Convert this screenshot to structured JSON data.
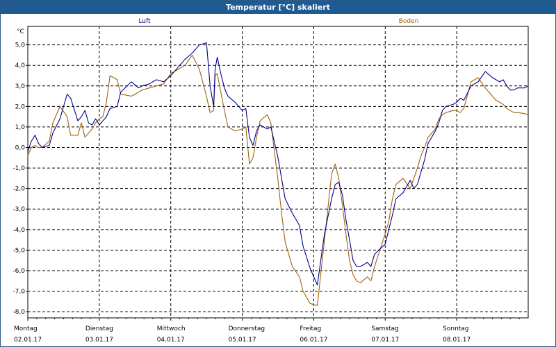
{
  "window": {
    "title": "Temperatur [°C] skaliert"
  },
  "chart_data": {
    "type": "line",
    "title": "Temperatur [°C] skaliert",
    "ylabel": "°C",
    "xlabel": "",
    "ylim": [
      -8.3,
      5.9
    ],
    "xlim": [
      0,
      7
    ],
    "y_ticks": [
      5,
      4,
      3,
      2,
      1,
      0,
      -1,
      -2,
      -3,
      -4,
      -5,
      -6,
      -7,
      -8
    ],
    "y_tick_labels": [
      "5,0",
      "4,0",
      "3,0",
      "2,0",
      "1,0",
      "0,0",
      "-1,0",
      "-2,0",
      "-3,0",
      "-4,0",
      "-5,0",
      "-6,0",
      "-7,0",
      "-8,0"
    ],
    "grid": true,
    "days": [
      {
        "name": "Montag",
        "date": "02.01.17"
      },
      {
        "name": "Dienstag",
        "date": "03.01.17"
      },
      {
        "name": "Mittwoch",
        "date": "04.01.17"
      },
      {
        "name": "Donnerstag",
        "date": "05.01.17"
      },
      {
        "name": "Freitag",
        "date": "06.01.17"
      },
      {
        "name": "Samstag",
        "date": "07.01.17"
      },
      {
        "name": "Sonntag",
        "date": "08.01.17"
      }
    ],
    "series": [
      {
        "name": "Luft",
        "color": "#00008b",
        "x": [
          0,
          0.05,
          0.1,
          0.15,
          0.2,
          0.3,
          0.35,
          0.45,
          0.55,
          0.6,
          0.7,
          0.75,
          0.8,
          0.85,
          0.9,
          0.95,
          1.0,
          1.05,
          1.1,
          1.15,
          1.25,
          1.3,
          1.45,
          1.55,
          1.6,
          1.7,
          1.8,
          1.9,
          2.0,
          2.1,
          2.2,
          2.3,
          2.4,
          2.5,
          2.55,
          2.6,
          2.62,
          2.65,
          2.7,
          2.75,
          2.8,
          2.9,
          3.0,
          3.05,
          3.1,
          3.15,
          3.2,
          3.25,
          3.35,
          3.4,
          3.5,
          3.55,
          3.6,
          3.7,
          3.8,
          3.85,
          3.95,
          4.05,
          4.15,
          4.25,
          4.3,
          4.35,
          4.4,
          4.45,
          4.5,
          4.55,
          4.6,
          4.65,
          4.75,
          4.8,
          4.85,
          5.0,
          5.05,
          5.1,
          5.15,
          5.25,
          5.35,
          5.4,
          5.45,
          5.5,
          5.55,
          5.6,
          5.7,
          5.75,
          5.8,
          5.85,
          5.95,
          6.0,
          6.05,
          6.1,
          6.2,
          6.3,
          6.4,
          6.5,
          6.55,
          6.6,
          6.65,
          6.7,
          6.75,
          6.8,
          6.85,
          6.95,
          7.0
        ],
        "values": [
          -0.2,
          0.3,
          0.6,
          0.2,
          0.0,
          0.1,
          0.7,
          1.4,
          2.6,
          2.4,
          1.3,
          1.5,
          1.8,
          1.2,
          1.1,
          1.4,
          1.1,
          1.3,
          1.5,
          1.9,
          2.0,
          2.7,
          3.2,
          2.9,
          3.0,
          3.1,
          3.3,
          3.2,
          3.5,
          3.9,
          4.3,
          4.6,
          5.0,
          5.1,
          3.0,
          2.0,
          3.8,
          4.4,
          3.6,
          2.9,
          2.5,
          2.2,
          1.8,
          1.9,
          0.5,
          0.1,
          0.8,
          1.1,
          0.9,
          1.0,
          -0.5,
          -1.5,
          -2.5,
          -3.2,
          -3.8,
          -4.8,
          -5.9,
          -6.7,
          -4.2,
          -2.5,
          -1.8,
          -1.7,
          -2.3,
          -3.5,
          -4.5,
          -5.5,
          -5.8,
          -5.8,
          -5.6,
          -5.8,
          -5.2,
          -4.7,
          -4.0,
          -3.3,
          -2.5,
          -2.2,
          -1.6,
          -2.0,
          -1.8,
          -1.2,
          -0.6,
          0.2,
          0.8,
          1.2,
          1.8,
          2.0,
          2.1,
          2.2,
          2.4,
          2.3,
          3.0,
          3.2,
          3.7,
          3.4,
          3.3,
          3.2,
          3.3,
          3.0,
          2.8,
          2.8,
          2.9,
          2.9,
          3.0
        ]
      },
      {
        "name": "Boden",
        "color": "#a0620a",
        "x": [
          0,
          0.05,
          0.1,
          0.15,
          0.2,
          0.3,
          0.35,
          0.45,
          0.55,
          0.6,
          0.7,
          0.75,
          0.8,
          0.85,
          0.9,
          0.95,
          1.0,
          1.05,
          1.1,
          1.15,
          1.25,
          1.3,
          1.45,
          1.55,
          1.6,
          1.7,
          1.8,
          1.9,
          2.0,
          2.1,
          2.2,
          2.3,
          2.4,
          2.5,
          2.55,
          2.6,
          2.62,
          2.65,
          2.7,
          2.75,
          2.8,
          2.9,
          3.0,
          3.05,
          3.1,
          3.15,
          3.2,
          3.25,
          3.35,
          3.4,
          3.5,
          3.55,
          3.6,
          3.7,
          3.8,
          3.85,
          3.95,
          4.05,
          4.15,
          4.25,
          4.3,
          4.35,
          4.4,
          4.45,
          4.5,
          4.55,
          4.6,
          4.65,
          4.75,
          4.8,
          4.85,
          5.0,
          5.05,
          5.1,
          5.15,
          5.25,
          5.35,
          5.4,
          5.45,
          5.5,
          5.55,
          5.6,
          5.7,
          5.75,
          5.8,
          5.85,
          5.95,
          6.0,
          6.05,
          6.1,
          6.2,
          6.3,
          6.4,
          6.5,
          6.55,
          6.6,
          6.65,
          6.7,
          6.75,
          6.8,
          6.85,
          6.95,
          7.0
        ],
        "values": [
          -0.4,
          0.0,
          0.1,
          0.0,
          0.0,
          0.3,
          1.2,
          2.0,
          1.5,
          0.6,
          0.6,
          1.2,
          0.5,
          0.7,
          0.9,
          1.2,
          1.4,
          1.5,
          2.2,
          3.5,
          3.3,
          2.6,
          2.5,
          2.7,
          2.8,
          2.9,
          3.0,
          3.1,
          3.6,
          3.8,
          4.0,
          4.5,
          3.8,
          2.5,
          1.7,
          1.8,
          3.5,
          3.6,
          2.7,
          1.8,
          1.0,
          0.8,
          0.9,
          1.0,
          -0.8,
          -0.5,
          0.5,
          1.3,
          1.6,
          1.2,
          -1.6,
          -3.2,
          -4.6,
          -5.8,
          -6.3,
          -7.0,
          -7.6,
          -7.7,
          -4.5,
          -1.3,
          -0.8,
          -1.5,
          -2.8,
          -4.2,
          -5.5,
          -6.2,
          -6.5,
          -6.6,
          -6.3,
          -6.5,
          -5.8,
          -4.2,
          -3.6,
          -2.5,
          -1.8,
          -1.5,
          -2.0,
          -1.5,
          -1.0,
          -0.4,
          0.0,
          0.5,
          0.9,
          1.4,
          1.6,
          1.7,
          1.8,
          1.8,
          1.7,
          1.9,
          3.2,
          3.4,
          2.9,
          2.5,
          2.3,
          2.2,
          2.1,
          1.9,
          1.8,
          1.7,
          1.7,
          1.65,
          1.6
        ]
      }
    ]
  }
}
